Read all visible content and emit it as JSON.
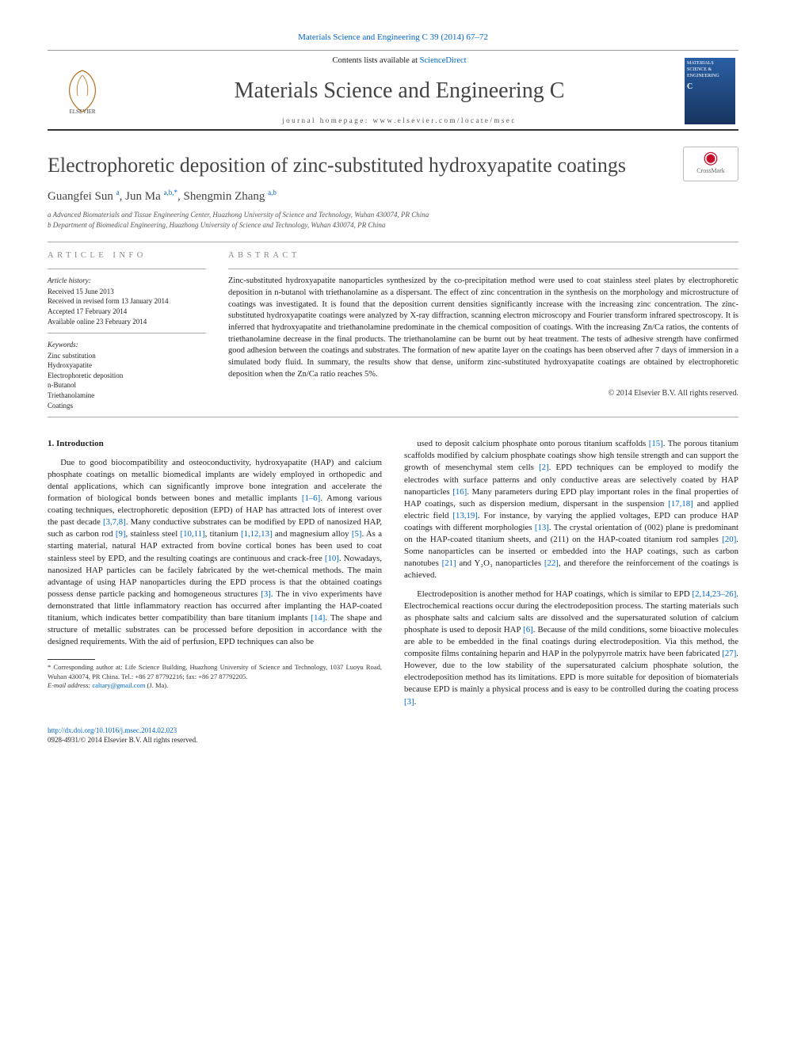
{
  "header_citation": "Materials Science and Engineering C 39 (2014) 67–72",
  "banner": {
    "contents_prefix": "Contents lists available at ",
    "contents_link": "ScienceDirect",
    "journal_title": "Materials Science and Engineering C",
    "homepage_label": "journal homepage: ",
    "homepage_url": "www.elsevier.com/locate/msec",
    "cover_text": "MATERIALS SCIENCE & ENGINEERING",
    "cover_sub": "C"
  },
  "article": {
    "title": "Electrophoretic deposition of zinc-substituted hydroxyapatite coatings",
    "crossmark_label": "CrossMark",
    "authors_html": "Guangfei Sun <sup>a</sup>, Jun Ma <sup>a,b,*</sup>, Shengmin Zhang <sup>a,b</sup>",
    "affiliations": [
      "a Advanced Biomaterials and Tissue Engineering Center, Huazhong University of Science and Technology, Wuhan 430074, PR China",
      "b Department of Biomedical Engineering, Huazhong University of Science and Technology, Wuhan 430074, PR China"
    ]
  },
  "article_info": {
    "heading": "article info",
    "history_label": "Article history:",
    "history": [
      "Received 15 June 2013",
      "Received in revised form 13 January 2014",
      "Accepted 17 February 2014",
      "Available online 23 February 2014"
    ],
    "keywords_label": "Keywords:",
    "keywords": [
      "Zinc substitution",
      "Hydroxyapatite",
      "Electrophoretic deposition",
      "n-Butanol",
      "Triethanolamine",
      "Coatings"
    ]
  },
  "abstract": {
    "heading": "abstract",
    "text": "Zinc-substituted hydroxyapatite nanoparticles synthesized by the co-precipitation method were used to coat stainless steel plates by electrophoretic deposition in n-butanol with triethanolamine as a dispersant. The effect of zinc concentration in the synthesis on the morphology and microstructure of coatings was investigated. It is found that the deposition current densities significantly increase with the increasing zinc concentration. The zinc-substituted hydroxyapatite coatings were analyzed by X-ray diffraction, scanning electron microscopy and Fourier transform infrared spectroscopy. It is inferred that hydroxyapatite and triethanolamine predominate in the chemical composition of coatings. With the increasing Zn/Ca ratios, the contents of triethanolamine decrease in the final products. The triethanolamine can be burnt out by heat treatment. The tests of adhesive strength have confirmed good adhesion between the coatings and substrates. The formation of new apatite layer on the coatings has been observed after 7 days of immersion in a simulated body fluid. In summary, the results show that dense, uniform zinc-substituted hydroxyapatite coatings are obtained by electrophoretic deposition when the Zn/Ca ratio reaches 5%.",
    "copyright": "© 2014 Elsevier B.V. All rights reserved."
  },
  "body": {
    "section1_heading": "1. Introduction",
    "para1": "Due to good biocompatibility and osteoconductivity, hydroxyapatite (HAP) and calcium phosphate coatings on metallic biomedical implants are widely employed in orthopedic and dental applications, which can significantly improve bone integration and accelerate the formation of biological bonds between bones and metallic implants [1–6]. Among various coating techniques, electrophoretic deposition (EPD) of HAP has attracted lots of interest over the past decade [3,7,8]. Many conductive substrates can be modified by EPD of nanosized HAP, such as carbon rod [9], stainless steel [10,11], titanium [1,12,13] and magnesium alloy [5]. As a starting material, natural HAP extracted from bovine cortical bones has been used to coat stainless steel by EPD, and the resulting coatings are continuous and crack-free [10]. Nowadays, nanosized HAP particles can be facilely fabricated by the wet-chemical methods. The main advantage of using HAP nanoparticles during the EPD process is that the obtained coatings possess dense particle packing and homogeneous structures [3]. The in vivo experiments have demonstrated that little inflammatory reaction has occurred after implanting the HAP-coated titanium, which indicates better compatibility than bare titanium implants [14]. The shape and structure of metallic substrates can be processed before deposition in accordance with the designed requirements. With the aid of perfusion, EPD techniques can also be",
    "para2": "used to deposit calcium phosphate onto porous titanium scaffolds [15]. The porous titanium scaffolds modified by calcium phosphate coatings show high tensile strength and can support the growth of mesenchymal stem cells [2]. EPD techniques can be employed to modify the electrodes with surface patterns and only conductive areas are selectively coated by HAP nanoparticles [16]. Many parameters during EPD play important roles in the final properties of HAP coatings, such as dispersion medium, dispersant in the suspension [17,18] and applied electric field [13,19]. For instance, by varying the applied voltages, EPD can produce HAP coatings with different morphologies [13]. The crystal orientation of (002) plane is predominant on the HAP-coated titanium sheets, and (211) on the HAP-coated titanium rod samples [20]. Some nanoparticles can be inserted or embedded into the HAP coatings, such as carbon nanotubes [21] and Y₂O₃ nanoparticles [22], and therefore the reinforcement of the coatings is achieved.",
    "para3": "Electrodeposition is another method for HAP coatings, which is similar to EPD [2,14,23–26]. Electrochemical reactions occur during the electrodeposition process. The starting materials such as phosphate salts and calcium salts are dissolved and the supersaturated solution of calcium phosphate is used to deposit HAP [6]. Because of the mild conditions, some bioactive molecules are able to be embedded in the final coatings during electrodeposition. Via this method, the composite films containing heparin and HAP in the polypyrrole matrix have been fabricated [27]. However, due to the low stability of the supersaturated calcium phosphate solution, the electrodeposition method has its limitations. EPD is more suitable for deposition of biomaterials because EPD is mainly a physical process and is easy to be controlled during the coating process [3]."
  },
  "footnotes": {
    "corresponding": "* Corresponding author at: Life Science Building, Huazhong University of Science and Technology, 1037 Luoyu Road, Wuhan 430074, PR China. Tel.: +86 27 87792216; fax: +86 27 87792205.",
    "email_label": "E-mail address: ",
    "email": "caltary@gmail.com",
    "email_suffix": " (J. Ma)."
  },
  "footer": {
    "doi": "http://dx.doi.org/10.1016/j.msec.2014.02.023",
    "issn_line": "0928-4931/© 2014 Elsevier B.V. All rights reserved."
  },
  "colors": {
    "link": "#0066cc",
    "rule": "#333333",
    "heading_gray": "#888888"
  }
}
